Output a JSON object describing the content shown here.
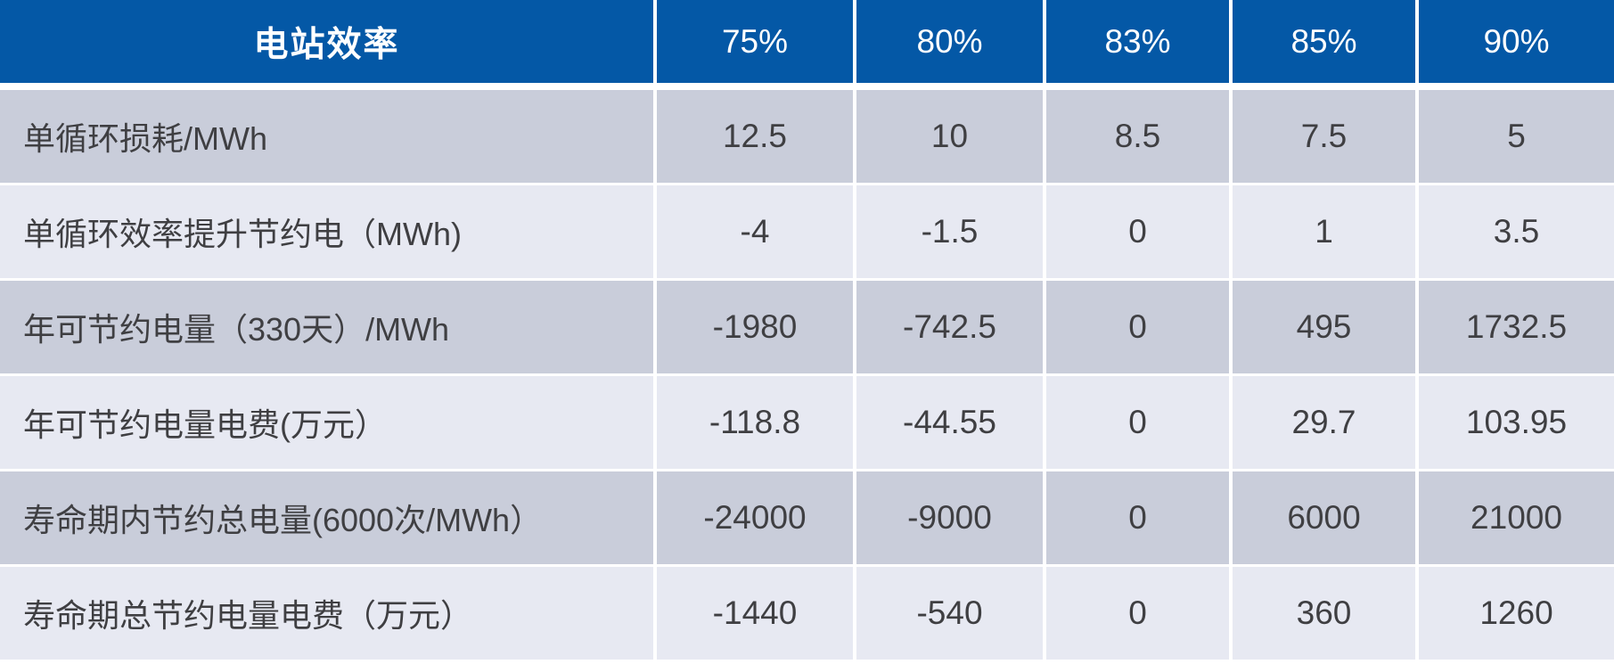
{
  "title": "电站效率",
  "colors": {
    "header_bg": "#0458A6",
    "header_text": "#FFFFFF",
    "row_dark_bg": "#C9CDDA",
    "row_light_bg": "#E7E9F2",
    "cell_text": "#3F3F42"
  },
  "chart_data": {
    "type": "table",
    "title": "电站效率",
    "columns": [
      "电站效率",
      "75%",
      "80%",
      "83%",
      "85%",
      "90%"
    ],
    "rows": [
      {
        "label": "单循环损耗/MWh",
        "values": [
          "12.5",
          "10",
          "8.5",
          "7.5",
          "5"
        ]
      },
      {
        "label": "单循环效率提升节约电（MWh)",
        "values": [
          "-4",
          "-1.5",
          "0",
          "1",
          "3.5"
        ]
      },
      {
        "label": "年可节约电量（330天）/MWh",
        "values": [
          "-1980",
          "-742.5",
          "0",
          "495",
          "1732.5"
        ]
      },
      {
        "label": "年可节约电量电费(万元）",
        "values": [
          "-118.8",
          "-44.55",
          "0",
          "29.7",
          "103.95"
        ]
      },
      {
        "label": "寿命期内节约总电量(6000次/MWh）",
        "values": [
          "-24000",
          "-9000",
          "0",
          "6000",
          "21000"
        ]
      },
      {
        "label": "寿命期总节约电量电费（万元）",
        "values": [
          "-1440",
          "-540",
          "0",
          "360",
          "1260"
        ]
      }
    ]
  }
}
